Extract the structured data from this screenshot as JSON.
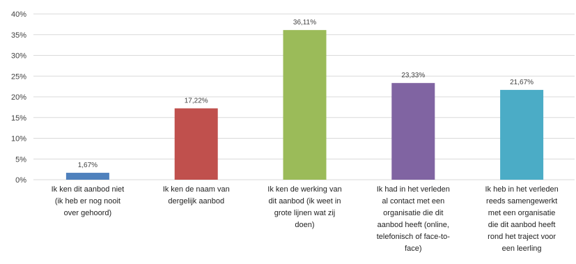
{
  "chart_data": {
    "type": "bar",
    "categories": [
      [
        "Ik ken dit aanbod niet",
        "(ik heb er nog nooit",
        "over gehoord)"
      ],
      [
        "Ik ken de naam van",
        "dergelijk aanbod"
      ],
      [
        "Ik ken de werking van",
        "dit aanbod (ik weet in",
        "grote lijnen wat zij",
        "doen)"
      ],
      [
        "Ik had in het verleden",
        "al contact met een",
        "organisatie die dit",
        "aanbod heeft (online,",
        "telefonisch of face-to-",
        "face)"
      ],
      [
        "Ik heb in het verleden",
        "reeds samengewerkt",
        "met een organisatie",
        "die dit aanbod heeft",
        "rond het traject voor",
        "een leerling"
      ]
    ],
    "values": [
      1.67,
      17.22,
      36.11,
      23.33,
      21.67
    ],
    "data_labels": [
      "1,67%",
      "17,22%",
      "36,11%",
      "23,33%",
      "21,67%"
    ],
    "colors": [
      "#4f81bd",
      "#c0504d",
      "#9bbb59",
      "#8064a2",
      "#4bacc6"
    ],
    "ylim": [
      0,
      40
    ],
    "yticks": [
      0,
      5,
      10,
      15,
      20,
      25,
      30,
      35,
      40
    ],
    "ytick_labels": [
      "0%",
      "5%",
      "10%",
      "15%",
      "20%",
      "25%",
      "30%",
      "35%",
      "40%"
    ],
    "grid": true,
    "gridline_color": "#d9d9d9",
    "title": "",
    "xlabel": "",
    "ylabel": ""
  }
}
